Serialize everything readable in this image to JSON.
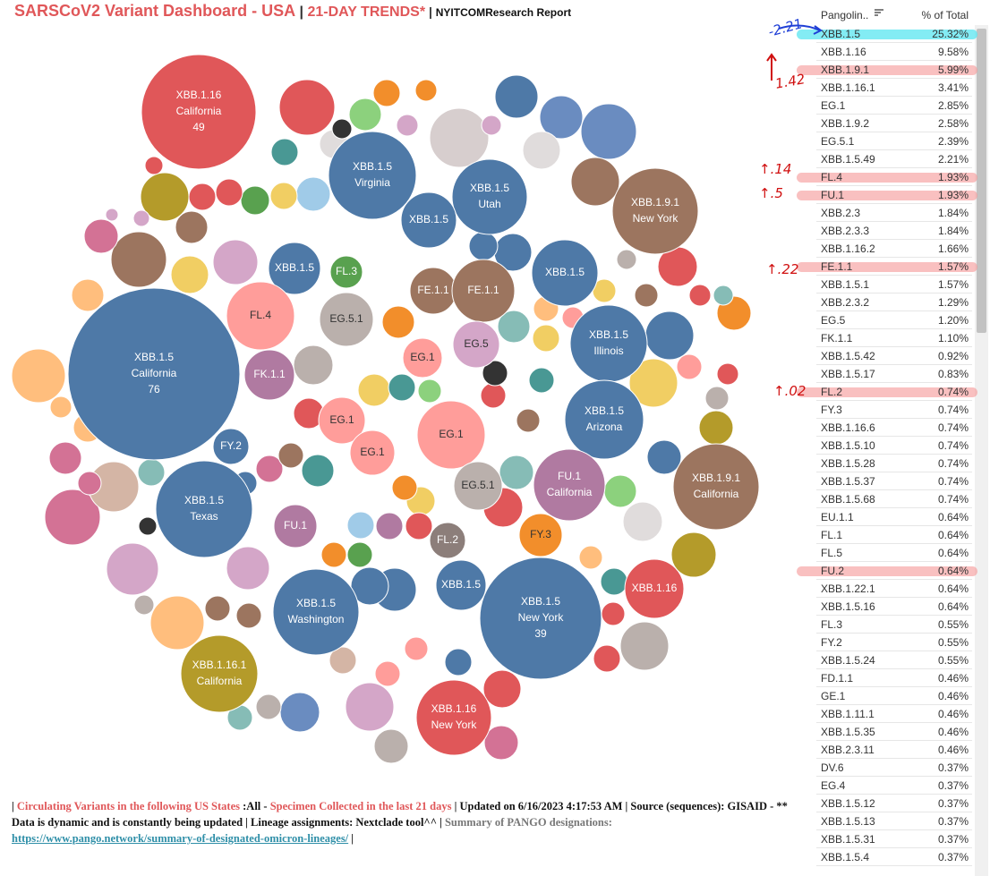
{
  "header": {
    "title_parts": [
      {
        "text": "SARSCoV2 Variant Dashboard - USA",
        "color": "#e05759",
        "size": 18
      },
      {
        "text": " | ",
        "color": "#333333",
        "size": 16
      },
      {
        "text": "21-DAY TRENDS*",
        "color": "#e05759",
        "size": 16
      },
      {
        "text": " | ",
        "color": "#333333",
        "size": 14
      },
      {
        "text": "NYITCOMResearch Report",
        "color": "#111111",
        "size": 12
      }
    ]
  },
  "bubbles": [
    {
      "lines": [
        "XBB.1.16",
        "California",
        "49"
      ],
      "color": "#e05759"
    },
    {
      "lines": [
        "XBB.1.5",
        "Virginia"
      ],
      "color": "#4e79a7"
    },
    {
      "lines": [
        "XBB.1.5",
        "Utah"
      ],
      "color": "#4e79a7"
    },
    {
      "lines": [
        "XBB.1.5"
      ],
      "color": "#4e79a7"
    },
    {
      "lines": [
        "XBB.1.9.1",
        "New York"
      ],
      "color": "#9c755f"
    },
    {
      "lines": [
        "XBB.1.5"
      ],
      "color": "#4e79a7"
    },
    {
      "lines": [
        "FL.3"
      ],
      "color": "#59a14f"
    },
    {
      "lines": [
        "FE.1.1"
      ],
      "color": "#9c755f"
    },
    {
      "lines": [
        "FE.1.1"
      ],
      "color": "#9c755f"
    },
    {
      "lines": [
        "XBB.1.5"
      ],
      "color": "#4e79a7"
    },
    {
      "lines": [
        "FL.4"
      ],
      "color": "#ff9d9a"
    },
    {
      "lines": [
        "EG.5.1"
      ],
      "color": "#bab0ac"
    },
    {
      "lines": [
        "XBB.1.5",
        "California",
        "76"
      ],
      "color": "#4e79a7"
    },
    {
      "lines": [
        "XBB.1.5",
        "Illinois"
      ],
      "color": "#4e79a7"
    },
    {
      "lines": [
        "EG.5"
      ],
      "color": "#d4a6c8"
    },
    {
      "lines": [
        "FK.1.1"
      ],
      "color": "#b07aa1"
    },
    {
      "lines": [
        "EG.1"
      ],
      "color": "#ff9d9a"
    },
    {
      "lines": [
        "EG.1"
      ],
      "color": "#ff9d9a"
    },
    {
      "lines": [
        "EG.1"
      ],
      "color": "#ff9d9a"
    },
    {
      "lines": [
        "EG.1"
      ],
      "color": "#ff9d9a"
    },
    {
      "lines": [
        "XBB.1.5",
        "Arizona"
      ],
      "color": "#4e79a7"
    },
    {
      "lines": [
        "FY.2"
      ],
      "color": "#4e79a7"
    },
    {
      "lines": [
        "EG.5.1"
      ],
      "color": "#bab0ac"
    },
    {
      "lines": [
        "FU.1",
        "California"
      ],
      "color": "#b07aa1"
    },
    {
      "lines": [
        "XBB.1.9.1",
        "California"
      ],
      "color": "#9c755f"
    },
    {
      "lines": [
        "XBB.1.5",
        "Texas"
      ],
      "color": "#4e79a7"
    },
    {
      "lines": [
        "FU.1"
      ],
      "color": "#b07aa1"
    },
    {
      "lines": [
        "FY.3"
      ],
      "color": "#f28e2b"
    },
    {
      "lines": [
        "FL.2"
      ],
      "color": "#8c7e7a"
    },
    {
      "lines": [
        "XBB.1.5"
      ],
      "color": "#4e79a7"
    },
    {
      "lines": [
        "XBB.1.5",
        "New York",
        "39"
      ],
      "color": "#4e79a7"
    },
    {
      "lines": [
        "XBB.1.16"
      ],
      "color": "#e05759"
    },
    {
      "lines": [
        "XBB.1.5",
        "Washington"
      ],
      "color": "#4e79a7"
    },
    {
      "lines": [
        "XBB.1.16.1",
        "California"
      ],
      "color": "#b49b2a"
    },
    {
      "lines": [
        "XBB.1.16",
        "New York"
      ],
      "color": "#e05759"
    }
  ],
  "table": {
    "columns": [
      "Pangolin..",
      "% of Total"
    ],
    "rows": [
      [
        "XBB.1.5",
        "25.32%"
      ],
      [
        "XBB.1.16",
        "9.58%"
      ],
      [
        "XBB.1.9.1",
        "5.99%"
      ],
      [
        "XBB.1.16.1",
        "3.41%"
      ],
      [
        "EG.1",
        "2.85%"
      ],
      [
        "XBB.1.9.2",
        "2.58%"
      ],
      [
        "EG.5.1",
        "2.39%"
      ],
      [
        "XBB.1.5.49",
        "2.21%"
      ],
      [
        "FL.4",
        "1.93%"
      ],
      [
        "FU.1",
        "1.93%"
      ],
      [
        "XBB.2.3",
        "1.84%"
      ],
      [
        "XBB.2.3.3",
        "1.84%"
      ],
      [
        "XBB.1.16.2",
        "1.66%"
      ],
      [
        "FE.1.1",
        "1.57%"
      ],
      [
        "XBB.1.5.1",
        "1.57%"
      ],
      [
        "XBB.2.3.2",
        "1.29%"
      ],
      [
        "EG.5",
        "1.20%"
      ],
      [
        "FK.1.1",
        "1.10%"
      ],
      [
        "XBB.1.5.42",
        "0.92%"
      ],
      [
        "XBB.1.5.17",
        "0.83%"
      ],
      [
        "FL.2",
        "0.74%"
      ],
      [
        "FY.3",
        "0.74%"
      ],
      [
        "XBB.1.16.6",
        "0.74%"
      ],
      [
        "XBB.1.5.10",
        "0.74%"
      ],
      [
        "XBB.1.5.28",
        "0.74%"
      ],
      [
        "XBB.1.5.37",
        "0.74%"
      ],
      [
        "XBB.1.5.68",
        "0.74%"
      ],
      [
        "EU.1.1",
        "0.64%"
      ],
      [
        "FL.1",
        "0.64%"
      ],
      [
        "FL.5",
        "0.64%"
      ],
      [
        "FU.2",
        "0.64%"
      ],
      [
        "XBB.1.22.1",
        "0.64%"
      ],
      [
        "XBB.1.5.16",
        "0.64%"
      ],
      [
        "FL.3",
        "0.55%"
      ],
      [
        "FY.2",
        "0.55%"
      ],
      [
        "XBB.1.5.24",
        "0.55%"
      ],
      [
        "FD.1.1",
        "0.46%"
      ],
      [
        "GE.1",
        "0.46%"
      ],
      [
        "XBB.1.11.1",
        "0.46%"
      ],
      [
        "XBB.1.5.35",
        "0.46%"
      ],
      [
        "XBB.2.3.11",
        "0.46%"
      ],
      [
        "DV.6",
        "0.37%"
      ],
      [
        "EG.4",
        "0.37%"
      ],
      [
        "XBB.1.5.12",
        "0.37%"
      ],
      [
        "XBB.1.5.13",
        "0.37%"
      ],
      [
        "XBB.1.5.31",
        "0.37%"
      ],
      [
        "XBB.1.5.4",
        "0.37%"
      ]
    ]
  },
  "annotations": [
    {
      "text": "-2.21",
      "color": "#1f3fd6"
    },
    {
      "text": "1.42",
      "color": "#d01010"
    },
    {
      "text": "↑.14",
      "color": "#d01010"
    },
    {
      "text": "↑.5",
      "color": "#d01010"
    },
    {
      "text": "↑.22",
      "color": "#d01010"
    },
    {
      "text": "↑.02",
      "color": "#d01010"
    }
  ],
  "footer": {
    "segments": [
      {
        "text": "| ",
        "color": "#111111"
      },
      {
        "text": "Circulating Variants in the following US States ",
        "color": "#e05759"
      },
      {
        "text": ":All - ",
        "color": "#111111"
      },
      {
        "text": "Specimen Collected in the last 21 days",
        "color": "#e05759"
      },
      {
        "text": " | Updated on 6/16/2023 4:17:53 AM | Source (sequences): GISAID - ** Data is dynamic and is constantly being updated | Lineage assignments: Nextclade tool^^ | ",
        "color": "#111111"
      },
      {
        "text": "Summary of PANGO designations: ",
        "color": "#777777"
      },
      {
        "text": "https://www.pango.network/summary-of-designated-omicron-lineages/",
        "color": "#2f8fa8",
        "link": true
      },
      {
        "text": " |",
        "color": "#111111"
      }
    ]
  }
}
